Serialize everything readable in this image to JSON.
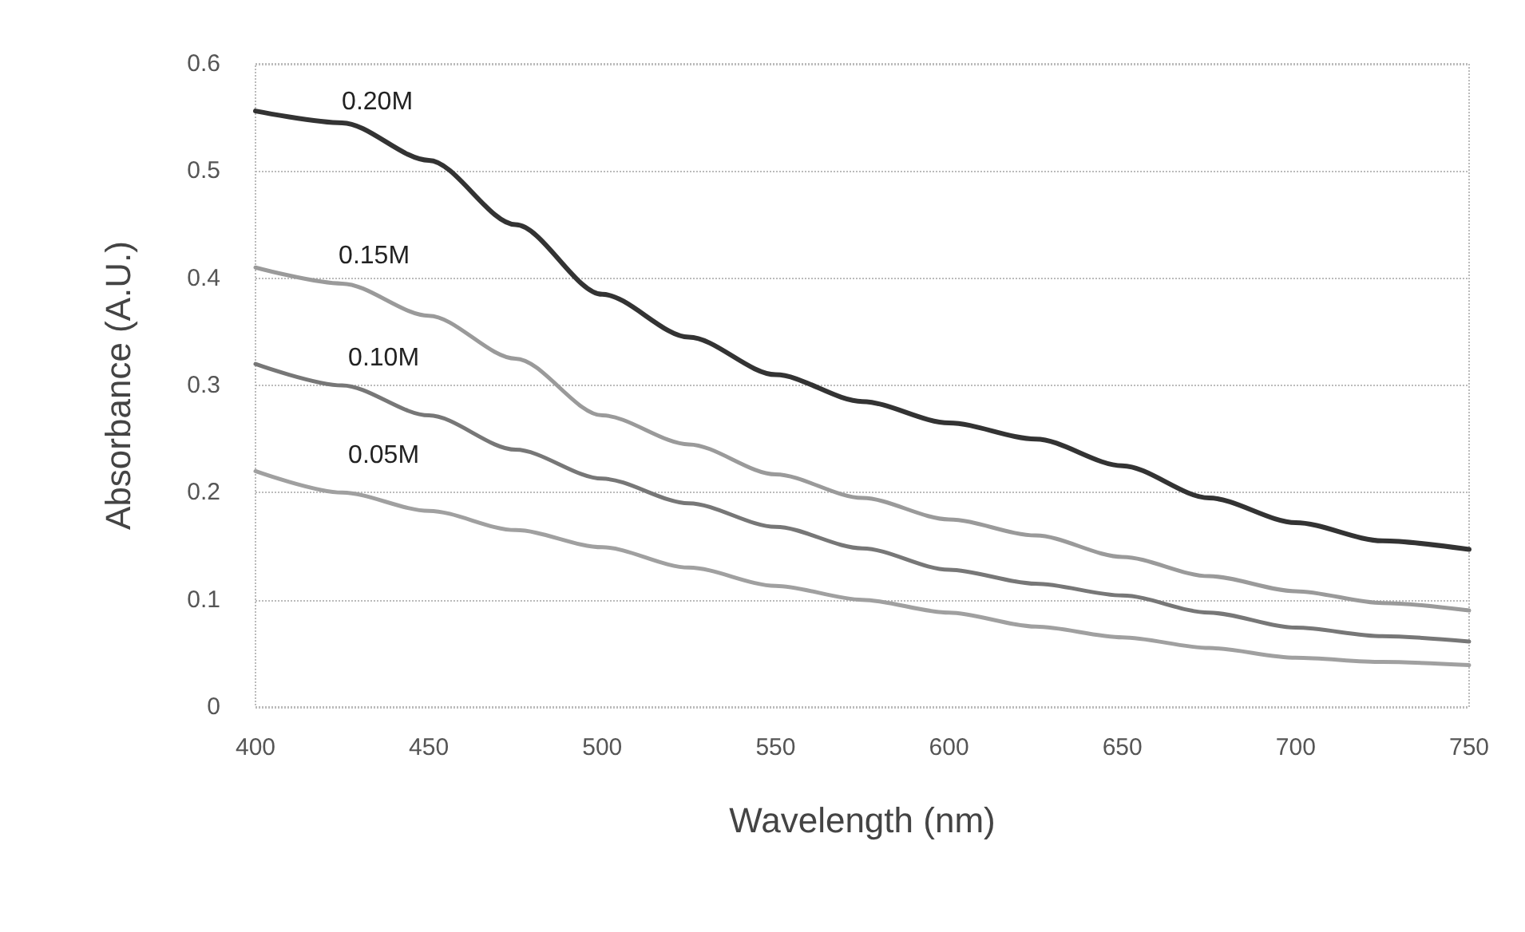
{
  "chart_data": {
    "type": "line",
    "xlabel": "Wavelength (nm)",
    "ylabel": "Absorbance (A.U.)",
    "x": [
      400,
      425,
      450,
      475,
      500,
      525,
      550,
      575,
      600,
      625,
      650,
      675,
      700,
      725,
      750
    ],
    "xlim": [
      400,
      750
    ],
    "xticks": [
      400,
      450,
      500,
      550,
      600,
      650,
      700,
      750
    ],
    "ylim": [
      0,
      0.6
    ],
    "yticks": [
      0,
      0.1,
      0.2,
      0.3,
      0.4,
      0.5,
      0.6
    ],
    "grid": "y",
    "legend": false,
    "marker": "none",
    "line_style": "solid",
    "series": [
      {
        "name": "0.20M",
        "color": "#333333",
        "values": [
          0.556,
          0.545,
          0.51,
          0.45,
          0.385,
          0.345,
          0.31,
          0.285,
          0.265,
          0.25,
          0.225,
          0.195,
          0.172,
          0.155,
          0.147
        ]
      },
      {
        "name": "0.15M",
        "color": "#9a9a9a",
        "values": [
          0.41,
          0.395,
          0.365,
          0.325,
          0.272,
          0.245,
          0.217,
          0.195,
          0.175,
          0.16,
          0.14,
          0.122,
          0.108,
          0.097,
          0.09
        ]
      },
      {
        "name": "0.10M",
        "color": "#777777",
        "values": [
          0.32,
          0.3,
          0.272,
          0.24,
          0.213,
          0.19,
          0.168,
          0.148,
          0.128,
          0.115,
          0.104,
          0.088,
          0.074,
          0.066,
          0.061
        ]
      },
      {
        "name": "0.05M",
        "color": "#a0a0a0",
        "values": [
          0.22,
          0.2,
          0.183,
          0.165,
          0.149,
          0.13,
          0.113,
          0.1,
          0.088,
          0.075,
          0.065,
          0.055,
          0.046,
          0.042,
          0.039
        ]
      }
    ]
  }
}
